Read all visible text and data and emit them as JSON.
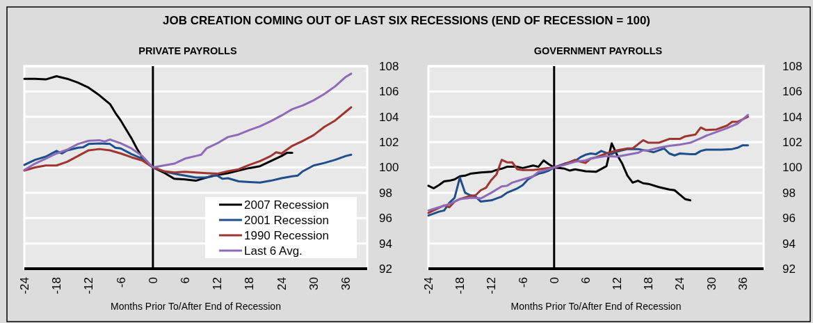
{
  "chart_data": [
    {
      "type": "line",
      "title": "JOB CREATION COMING OUT OF LAST SIX RECESSIONS (END OF RECESSION = 100)",
      "subtitle": "PRIVATE PAYROLLS",
      "xlabel": "Months Prior To/After End of Recession",
      "xlim": [
        -24,
        40
      ],
      "xticks": [
        -24,
        -18,
        -12,
        -6,
        0,
        6,
        12,
        18,
        24,
        30,
        36
      ],
      "ylim": [
        92,
        108
      ],
      "yticks": [
        92,
        94,
        96,
        98,
        100,
        102,
        104,
        106,
        108
      ],
      "grid": "y",
      "legend": "bottom right",
      "marker": "none",
      "line_style": "solid",
      "ref_lines": [
        {
          "axis": "x",
          "value": 0,
          "color": "#000000"
        }
      ],
      "series": [
        {
          "name": "2007 Recession",
          "color": "#000000",
          "x": [
            -24,
            -22,
            -20,
            -18,
            -16,
            -14,
            -12,
            -10,
            -8,
            -7,
            -6,
            -5,
            -4,
            -3,
            -2,
            -1,
            0,
            2,
            4,
            6,
            8,
            10,
            12,
            14,
            16,
            18,
            20,
            22,
            24,
            25,
            26
          ],
          "values": [
            107.0,
            107.0,
            106.95,
            107.2,
            107.0,
            106.7,
            106.3,
            105.7,
            105.0,
            104.3,
            103.7,
            103.0,
            102.3,
            101.5,
            100.8,
            100.4,
            100,
            99.6,
            99.1,
            99.05,
            98.95,
            99.2,
            99.4,
            99.55,
            99.75,
            99.95,
            100.1,
            100.5,
            100.9,
            101.15,
            101.15
          ]
        },
        {
          "name": "2001 Recession",
          "color": "#1f4e8c",
          "x": [
            -24,
            -22,
            -20,
            -18,
            -17,
            -16,
            -14,
            -13,
            -12,
            -10,
            -8,
            -7,
            -6,
            -4,
            -2,
            0,
            2,
            4,
            6,
            8,
            10,
            11,
            12,
            13,
            14,
            16,
            18,
            20,
            22,
            24,
            26,
            27,
            28,
            30,
            32,
            34,
            36,
            37
          ],
          "values": [
            100.2,
            100.6,
            100.85,
            101.3,
            101.1,
            101.35,
            101.55,
            101.6,
            101.85,
            101.9,
            101.85,
            101.55,
            101.5,
            101.05,
            100.7,
            100,
            99.7,
            99.5,
            99.35,
            99.2,
            99.2,
            99.35,
            99.35,
            99.1,
            99.15,
            98.9,
            98.85,
            98.8,
            98.95,
            99.15,
            99.3,
            99.35,
            99.7,
            100.15,
            100.35,
            100.6,
            100.9,
            101.0
          ]
        },
        {
          "name": "1990 Recession",
          "color": "#a0342f",
          "x": [
            -24,
            -22,
            -20,
            -18,
            -16,
            -14,
            -12,
            -10,
            -8,
            -6,
            -4,
            -2,
            0,
            2,
            4,
            6,
            8,
            10,
            12,
            14,
            16,
            18,
            20,
            22,
            23,
            24,
            25,
            26,
            28,
            30,
            32,
            34,
            36,
            37
          ],
          "values": [
            99.75,
            100.0,
            100.15,
            100.15,
            100.45,
            100.9,
            101.35,
            101.45,
            101.35,
            101.1,
            100.8,
            100.55,
            100,
            99.7,
            99.6,
            99.65,
            99.6,
            99.55,
            99.5,
            99.7,
            99.85,
            100.2,
            100.5,
            100.9,
            101.2,
            101.1,
            101.4,
            101.7,
            102.1,
            102.55,
            103.2,
            103.7,
            104.4,
            104.75
          ]
        },
        {
          "name": "Last 6 Avg.",
          "color": "#8e6bb8",
          "x": [
            -24,
            -22,
            -20,
            -18,
            -16,
            -14,
            -12,
            -10,
            -9,
            -8,
            -6,
            -4,
            -2,
            0,
            2,
            4,
            6,
            8,
            9,
            10,
            12,
            14,
            16,
            18,
            20,
            22,
            24,
            26,
            28,
            30,
            32,
            34,
            36,
            37
          ],
          "values": [
            99.8,
            100.3,
            100.7,
            101.1,
            101.4,
            101.85,
            102.1,
            102.15,
            102.05,
            102.2,
            101.9,
            101.5,
            100.9,
            100,
            100.15,
            100.3,
            100.7,
            100.9,
            101.0,
            101.5,
            101.9,
            102.4,
            102.6,
            102.95,
            103.25,
            103.65,
            104.1,
            104.6,
            104.9,
            105.3,
            105.8,
            106.4,
            107.15,
            107.4
          ]
        }
      ]
    },
    {
      "type": "line",
      "subtitle": "GOVERNMENT PAYROLLS",
      "xlabel": "Months Prior To/After End of Recession",
      "xlim": [
        -24,
        40
      ],
      "xticks": [
        -24,
        -18,
        -12,
        -6,
        0,
        6,
        12,
        18,
        24,
        30,
        36
      ],
      "ylim": [
        92,
        108
      ],
      "yticks": [
        92,
        94,
        96,
        98,
        100,
        102,
        104,
        106,
        108
      ],
      "grid": "y",
      "marker": "none",
      "line_style": "solid",
      "ref_lines": [
        {
          "axis": "x",
          "value": 0,
          "color": "#000000"
        }
      ],
      "series": [
        {
          "color": "#000000",
          "x": [
            -24,
            -23,
            -22,
            -21,
            -20,
            -19,
            -18,
            -17,
            -16,
            -14,
            -12,
            -11,
            -10,
            -9,
            -7,
            -6,
            -5,
            -4,
            -3,
            -2,
            -1,
            0,
            2,
            3,
            4,
            6,
            8,
            10,
            11,
            12,
            13,
            14,
            15,
            16,
            17,
            18,
            20,
            22,
            23,
            24,
            25,
            26
          ],
          "values": [
            98.55,
            98.35,
            98.6,
            98.9,
            98.95,
            99.05,
            99.3,
            99.35,
            99.5,
            99.6,
            99.65,
            99.8,
            99.9,
            100.05,
            100.05,
            99.95,
            100.05,
            100.15,
            100.05,
            100.55,
            100.25,
            100,
            99.9,
            99.75,
            99.85,
            99.7,
            99.65,
            100.1,
            101.9,
            101.0,
            100.3,
            99.35,
            98.8,
            98.95,
            98.75,
            98.7,
            98.45,
            98.25,
            98.2,
            97.85,
            97.5,
            97.4
          ]
        },
        {
          "color": "#1f4e8c",
          "x": [
            -24,
            -22,
            -21,
            -20,
            -19,
            -18,
            -17,
            -16,
            -15,
            -14,
            -12,
            -10,
            -9,
            -7,
            -6,
            -5,
            -4,
            -3,
            -2,
            -1,
            0,
            2,
            4,
            5,
            6,
            7,
            8,
            9,
            10,
            11,
            12,
            14,
            16,
            18,
            19,
            20,
            21,
            22,
            23,
            24,
            26,
            27,
            28,
            29,
            32,
            34,
            35,
            36,
            37
          ],
          "values": [
            96.2,
            96.5,
            96.6,
            97.2,
            97.6,
            99.2,
            98.0,
            97.8,
            97.7,
            97.3,
            97.4,
            97.7,
            98.0,
            98.35,
            98.6,
            99.05,
            99.3,
            99.5,
            99.6,
            99.75,
            100,
            100.3,
            100.5,
            100.8,
            101.0,
            101.1,
            101.05,
            101.3,
            101.15,
            101.05,
            101.25,
            101.45,
            101.45,
            101.3,
            101.2,
            101.35,
            101.5,
            101.1,
            100.95,
            101.1,
            101.05,
            101.05,
            101.3,
            101.4,
            101.4,
            101.45,
            101.55,
            101.75,
            101.75
          ]
        },
        {
          "color": "#a0342f",
          "x": [
            -24,
            -22,
            -21,
            -20,
            -19,
            -18,
            -16,
            -15,
            -14,
            -13,
            -12,
            -11,
            -10,
            -9,
            -8,
            -7,
            -6,
            -4,
            -2,
            0,
            2,
            4,
            5,
            6,
            7,
            8,
            10,
            12,
            14,
            15,
            17,
            18,
            20,
            22,
            24,
            25,
            27,
            28,
            29,
            31,
            33,
            34,
            35,
            37
          ],
          "values": [
            96.4,
            96.8,
            97.0,
            96.85,
            97.3,
            97.5,
            97.75,
            97.8,
            98.2,
            98.4,
            99.0,
            99.45,
            100.6,
            100.4,
            100.4,
            99.85,
            99.8,
            99.8,
            99.9,
            100,
            100.25,
            100.6,
            100.45,
            100.35,
            100.7,
            100.8,
            101.1,
            101.35,
            101.5,
            101.5,
            102.15,
            101.95,
            101.95,
            102.25,
            102.25,
            102.45,
            102.6,
            103.15,
            102.95,
            103.0,
            103.3,
            103.6,
            103.6,
            104.0
          ]
        },
        {
          "color": "#8e6bb8",
          "x": [
            -24,
            -22,
            -20,
            -18,
            -16,
            -15,
            -14,
            -12,
            -10,
            -9,
            -8,
            -6,
            -4,
            -3,
            -2,
            0,
            2,
            4,
            6,
            7,
            10,
            12,
            14,
            16,
            17,
            18,
            20,
            22,
            24,
            26,
            28,
            29,
            31,
            33,
            35,
            37
          ],
          "values": [
            96.6,
            96.85,
            97.1,
            97.5,
            97.6,
            97.6,
            97.55,
            98.0,
            98.5,
            98.55,
            98.8,
            99.05,
            99.3,
            99.65,
            99.75,
            100,
            100.2,
            100.45,
            100.55,
            100.7,
            100.9,
            100.85,
            101.0,
            101.15,
            101.35,
            101.35,
            101.55,
            101.7,
            101.8,
            101.95,
            102.3,
            102.5,
            102.8,
            103.1,
            103.45,
            104.15
          ]
        }
      ]
    }
  ]
}
